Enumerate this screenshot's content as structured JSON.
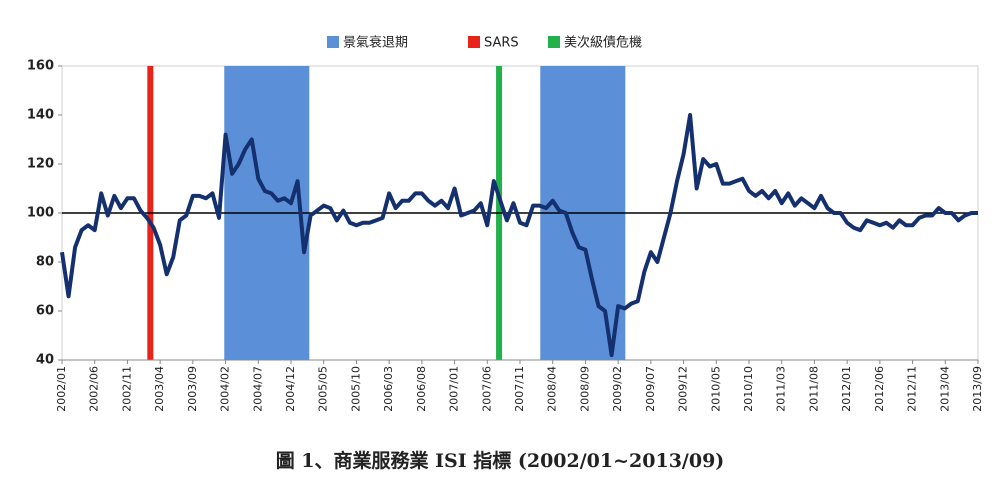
{
  "chart_data": {
    "type": "line",
    "title": "圖 1、商業服務業 ISI 指標 (2002/01~2013/09)",
    "categories": [
      "2002/01",
      null,
      null,
      null,
      null,
      "2002/06",
      null,
      null,
      null,
      null,
      "2002/11",
      null,
      null,
      null,
      null,
      "2003/04",
      null,
      null,
      null,
      null,
      "2003/09",
      null,
      null,
      null,
      null,
      "2004/02",
      null,
      null,
      null,
      null,
      "2004/07",
      null,
      null,
      null,
      null,
      "2004/12",
      null,
      null,
      null,
      null,
      "2005/05",
      null,
      null,
      null,
      null,
      "2005/10",
      null,
      null,
      null,
      null,
      "2006/03",
      null,
      null,
      null,
      null,
      "2006/08",
      null,
      null,
      null,
      null,
      "2007/01",
      null,
      null,
      null,
      null,
      "2007/06",
      null,
      null,
      null,
      null,
      "2007/11",
      null,
      null,
      null,
      null,
      "2008/04",
      null,
      null,
      null,
      null,
      "2008/09",
      null,
      null,
      null,
      null,
      "2009/02",
      null,
      null,
      null,
      null,
      "2009/07",
      null,
      null,
      null,
      null,
      "2009/12",
      null,
      null,
      null,
      null,
      "2010/05",
      null,
      null,
      null,
      null,
      "2010/10",
      null,
      null,
      null,
      null,
      "2011/03",
      null,
      null,
      null,
      null,
      "2011/08",
      null,
      null,
      null,
      null,
      "2012/01",
      null,
      null,
      null,
      null,
      "2012/06",
      null,
      null,
      null,
      null,
      "2012/11",
      null,
      null,
      null,
      null,
      "2013/04",
      null,
      null,
      null,
      null,
      "2013/09"
    ],
    "values": [
      84,
      66,
      86,
      93,
      95,
      93,
      108,
      99,
      107,
      102,
      106,
      106,
      101,
      98,
      94,
      87,
      75,
      82,
      97,
      99,
      107,
      107,
      106,
      108,
      98,
      132,
      116,
      120,
      126,
      130,
      114,
      109,
      108,
      105,
      106,
      104,
      113,
      84,
      99,
      101,
      103,
      102,
      97,
      101,
      96,
      95,
      96,
      96,
      97,
      98,
      108,
      102,
      105,
      105,
      108,
      108,
      105,
      103,
      105,
      102,
      110,
      99,
      100,
      101,
      104,
      95,
      113,
      105,
      97,
      104,
      96,
      95,
      103,
      103,
      102,
      105,
      101,
      100,
      92,
      86,
      85,
      73,
      62,
      60,
      42,
      62,
      61,
      63,
      64,
      76,
      84,
      80,
      90,
      100,
      113,
      124,
      140,
      110,
      122,
      119,
      120,
      112,
      112,
      113,
      114,
      109,
      107,
      109,
      106,
      109,
      104,
      108,
      103,
      106,
      104,
      102,
      107,
      102,
      100,
      100,
      96,
      94,
      93,
      97,
      96,
      95,
      96,
      94,
      97,
      95,
      95,
      98,
      99,
      99,
      102,
      100,
      100,
      97,
      99,
      100,
      100
    ],
    "color": "#15306e",
    "ylim": [
      40,
      160
    ],
    "yticks": [
      40,
      60,
      80,
      100,
      120,
      140,
      160
    ],
    "reference_line": 100,
    "events": [
      {
        "name": "景氣衰退期",
        "kind": "band",
        "color": "#5b8fd8",
        "ranges": [
          [
            24.8,
            37.8
          ],
          [
            73.1,
            86.1
          ]
        ]
      },
      {
        "name": "SARS",
        "kind": "line",
        "color": "#e8231a",
        "x": 13.5
      },
      {
        "name": "美次級債危機",
        "kind": "line",
        "color": "#22b04b",
        "x": 66.8
      }
    ]
  }
}
